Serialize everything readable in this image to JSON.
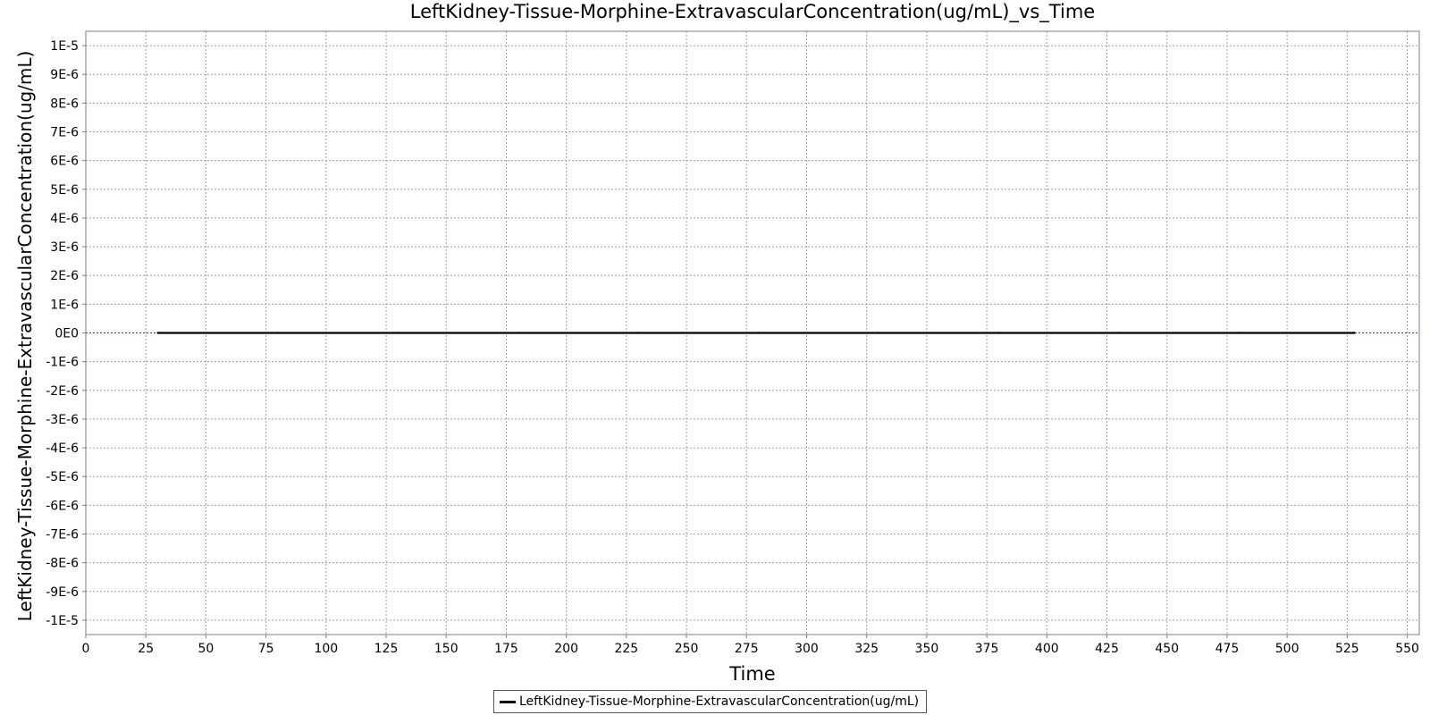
{
  "chart_data": {
    "type": "line",
    "title": "LeftKidney-Tissue-Morphine-ExtravascularConcentration(ug/mL)_vs_Time",
    "xlabel": "Time",
    "ylabel": "LeftKidney-Tissue-Morphine-ExtravascularConcentration(ug/mL)",
    "xlim": [
      0,
      555
    ],
    "ylim": [
      -1.05e-05,
      1.05e-05
    ],
    "x_ticks": [
      0,
      25,
      50,
      75,
      100,
      125,
      150,
      175,
      200,
      225,
      250,
      275,
      300,
      325,
      350,
      375,
      400,
      425,
      450,
      475,
      500,
      525,
      550
    ],
    "x_tick_labels": [
      "0",
      "25",
      "50",
      "75",
      "100",
      "125",
      "150",
      "175",
      "200",
      "225",
      "250",
      "275",
      "300",
      "325",
      "350",
      "375",
      "400",
      "425",
      "450",
      "475",
      "500",
      "525",
      "550"
    ],
    "y_ticks": [
      1e-05,
      9e-06,
      8e-06,
      7e-06,
      6e-06,
      5e-06,
      4e-06,
      3e-06,
      2e-06,
      1e-06,
      0,
      -1e-06,
      -2e-06,
      -3e-06,
      -4e-06,
      -5e-06,
      -6e-06,
      -7e-06,
      -8e-06,
      -9e-06,
      -1e-05
    ],
    "y_tick_labels": [
      "1E-5",
      "9E-6",
      "8E-6",
      "7E-6",
      "6E-6",
      "5E-6",
      "4E-6",
      "3E-6",
      "2E-6",
      "1E-6",
      "0E0",
      "-1E-6",
      "-2E-6",
      "-3E-6",
      "-4E-6",
      "-5E-6",
      "-6E-6",
      "-7E-6",
      "-8E-6",
      "-9E-6",
      "-1E-5"
    ],
    "grid": true,
    "legend_position": "bottom-center",
    "series": [
      {
        "name": "LeftKidney-Tissue-Morphine-ExtravascularConcentration(ug/mL)",
        "color": "#000000",
        "x": [
          30,
          80,
          130,
          180,
          230,
          280,
          330,
          380,
          430,
          480,
          528
        ],
        "y": [
          0,
          0,
          0,
          0,
          0,
          0,
          0,
          0,
          0,
          0,
          0
        ]
      }
    ]
  }
}
